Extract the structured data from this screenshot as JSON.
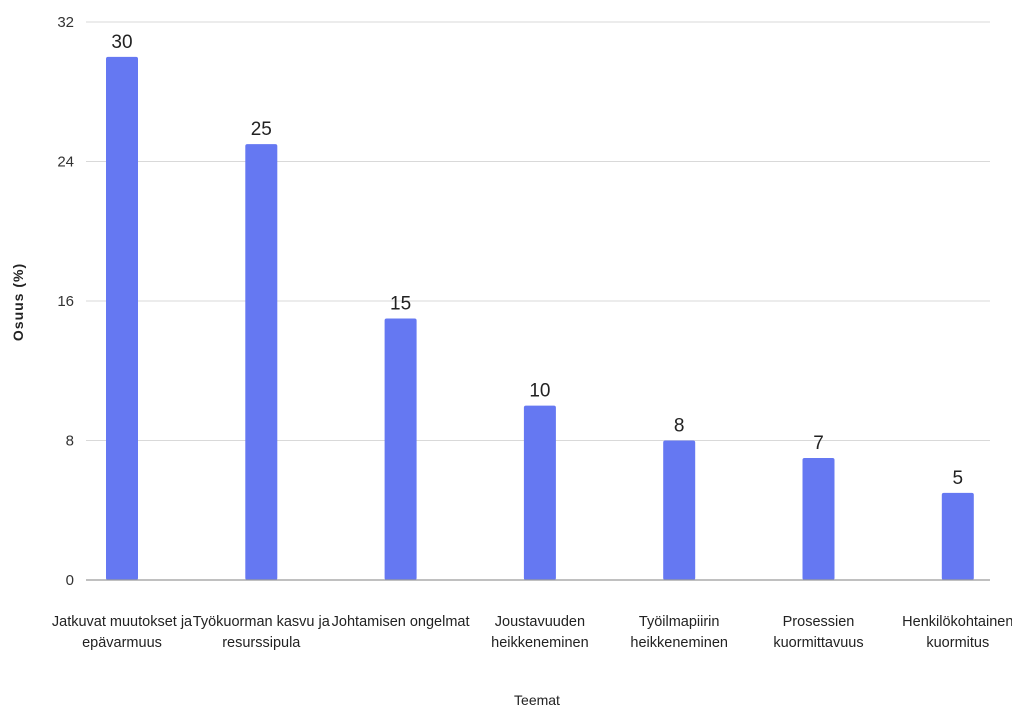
{
  "colors": {
    "bar": "#6578F2",
    "grid": "#d9d9d9",
    "axis": "#9a9a9a",
    "text": "#222222"
  },
  "chart_data": {
    "type": "bar",
    "title": "",
    "xlabel": "Teemat",
    "ylabel": "Osuus (%)",
    "ylim": [
      0,
      32
    ],
    "yticks": [
      0,
      8,
      16,
      24,
      32
    ],
    "grid": true,
    "legend": "none",
    "categories": [
      [
        "Jatkuvat muutokset ja",
        "epävarmuus"
      ],
      [
        "Työkuorman kasvu ja",
        "resurssipula"
      ],
      [
        "Johtamisen ongelmat"
      ],
      [
        "Joustavuuden",
        "heikkeneminen"
      ],
      [
        "Työilmapiirin",
        "heikkeneminen"
      ],
      [
        "Prosessien",
        "kuormittavuus"
      ],
      [
        "Henkilökohtainen",
        "kuormitus"
      ]
    ],
    "values": [
      30,
      25,
      15,
      10,
      8,
      7,
      5
    ]
  }
}
